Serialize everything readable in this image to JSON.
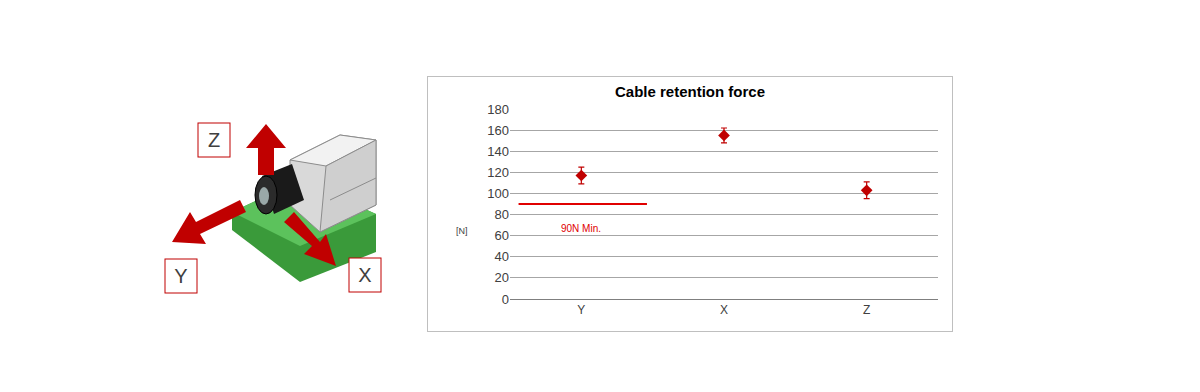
{
  "chart_data": {
    "type": "scatter",
    "title": "Cable retention force",
    "categories": [
      "Y",
      "X",
      "Z"
    ],
    "values": [
      117,
      155,
      103
    ],
    "errors": [
      8,
      7,
      8
    ],
    "color": "#c00000",
    "marker": "diamond",
    "y_label": "[N]",
    "ylim": [
      0,
      180
    ],
    "yticks": [
      0,
      20,
      40,
      60,
      80,
      100,
      120,
      140,
      160,
      180
    ],
    "grid": true,
    "annotations": [
      {
        "text": "90N Min.",
        "y": 90,
        "color": "#e00000"
      }
    ]
  },
  "diagram": {
    "labels": [
      "Z",
      "Y",
      "X"
    ]
  }
}
